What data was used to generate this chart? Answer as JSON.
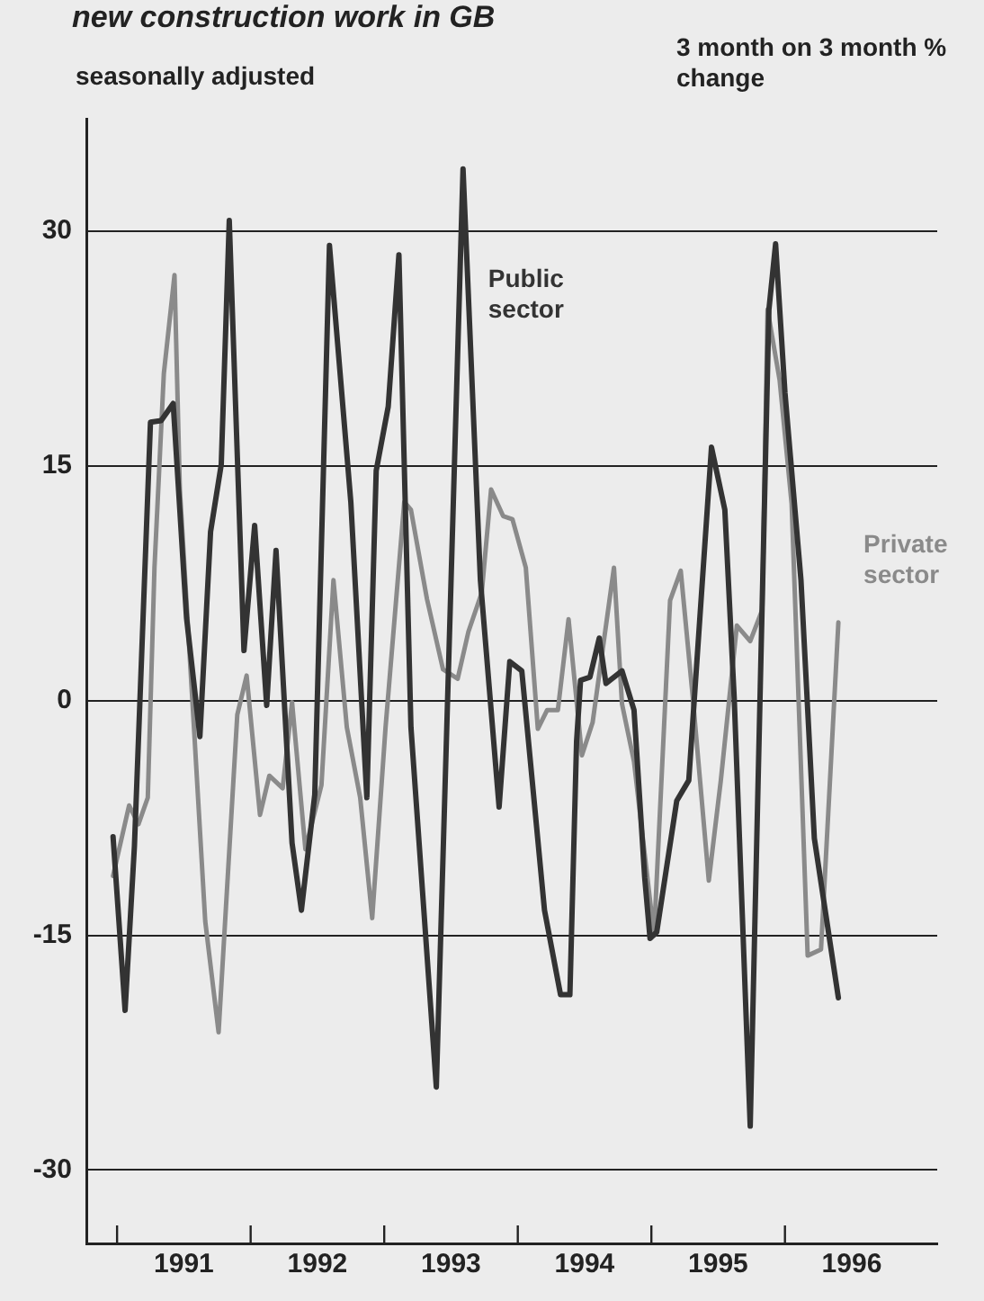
{
  "chart_data": {
    "type": "line",
    "title": "new construction work in GB",
    "subtitle": "seasonally adjusted",
    "ylabel": "3 month on 3 month % change",
    "series": [
      {
        "name": "Public sector",
        "color": "#333333",
        "x": [
          1990.97,
          1991.06,
          1991.13,
          1991.25,
          1991.33,
          1991.42,
          1991.52,
          1991.62,
          1991.7,
          1991.78,
          1991.84,
          1991.95,
          1992.03,
          1992.12,
          1992.19,
          1992.31,
          1992.38,
          1992.48,
          1992.59,
          1992.75,
          1992.87,
          1992.94,
          1993.03,
          1993.11,
          1993.2,
          1993.39,
          1993.59,
          1993.72,
          1993.86,
          1993.94,
          1994.03,
          1994.2,
          1994.32,
          1994.39,
          1994.44,
          1994.47,
          1994.54,
          1994.61,
          1994.66,
          1994.78,
          1994.87,
          1994.95,
          1994.99,
          1995.04,
          1995.19,
          1995.28,
          1995.45,
          1995.55,
          1995.62,
          1995.74,
          1995.88,
          1995.93,
          1996.0,
          1996.12,
          1996.22,
          1996.4
        ],
        "values": [
          -8.7,
          -19.8,
          -9.3,
          17.8,
          17.9,
          19.0,
          5.3,
          -2.3,
          10.8,
          15.1,
          30.7,
          3.2,
          11.2,
          -0.3,
          9.6,
          -9.1,
          -13.4,
          -6.0,
          29.1,
          12.7,
          -6.2,
          14.7,
          18.8,
          28.5,
          -1.7,
          -24.7,
          34.0,
          7.7,
          -6.8,
          2.5,
          1.9,
          -13.4,
          -18.8,
          -18.8,
          -2.6,
          1.3,
          1.5,
          4.0,
          1.1,
          1.9,
          -0.6,
          -11.3,
          -15.2,
          -14.8,
          -6.4,
          -5.1,
          16.2,
          12.2,
          0.2,
          -27.2,
          25.0,
          29.2,
          19.7,
          7.7,
          -8.8,
          -19.0
        ]
      },
      {
        "name": "Private sector",
        "color": "#8a8a8a",
        "x": [
          1990.97,
          1991.09,
          1991.16,
          1991.23,
          1991.28,
          1991.35,
          1991.43,
          1991.47,
          1991.57,
          1991.66,
          1991.76,
          1991.9,
          1991.97,
          1992.07,
          1992.14,
          1992.24,
          1992.31,
          1992.41,
          1992.53,
          1992.62,
          1992.72,
          1992.82,
          1992.91,
          1993.01,
          1993.15,
          1993.2,
          1993.32,
          1993.44,
          1993.55,
          1993.63,
          1993.73,
          1993.8,
          1993.89,
          1993.96,
          1994.06,
          1994.15,
          1994.22,
          1994.3,
          1994.38,
          1994.48,
          1994.56,
          1994.72,
          1994.78,
          1994.87,
          1995.02,
          1995.14,
          1995.22,
          1995.31,
          1995.43,
          1995.52,
          1995.64,
          1995.74,
          1995.83,
          1995.87,
          1995.96,
          1996.05,
          1996.17,
          1996.27,
          1996.4
        ],
        "values": [
          -11.2,
          -6.7,
          -7.9,
          -6.2,
          8.5,
          20.9,
          27.2,
          13.5,
          -0.9,
          -14.1,
          -21.2,
          -0.9,
          1.6,
          -7.3,
          -4.8,
          -5.6,
          -0.1,
          -9.5,
          -5.4,
          7.7,
          -1.7,
          -6.2,
          -13.9,
          -1.7,
          12.7,
          12.2,
          6.5,
          2.0,
          1.4,
          4.4,
          6.9,
          13.5,
          11.8,
          11.6,
          8.5,
          -1.8,
          -0.6,
          -0.6,
          5.2,
          -3.5,
          -1.4,
          8.5,
          -0.2,
          -3.9,
          -15.0,
          6.4,
          8.3,
          0.2,
          -11.5,
          -5.1,
          4.8,
          3.8,
          5.8,
          25.0,
          20.5,
          12.6,
          -16.3,
          -15.9,
          5.0
        ]
      }
    ],
    "xlim": [
      1990.77,
      1997.14
    ],
    "xticks": [
      {
        "value": 1991,
        "label": null
      },
      {
        "value": 1991.5,
        "label": "1991"
      },
      {
        "value": 1992,
        "label": null
      },
      {
        "value": 1992.5,
        "label": "1992"
      },
      {
        "value": 1993,
        "label": null
      },
      {
        "value": 1993.5,
        "label": "1993"
      },
      {
        "value": 1994,
        "label": null
      },
      {
        "value": 1994.5,
        "label": "1994"
      },
      {
        "value": 1995,
        "label": null
      },
      {
        "value": 1995.5,
        "label": "1995"
      },
      {
        "value": 1996,
        "label": null
      },
      {
        "value": 1996.5,
        "label": "1996"
      }
    ],
    "ylim": [
      -34.7,
      37.2
    ],
    "yticks": [
      -30,
      -15,
      0,
      15,
      30
    ],
    "grid": "y",
    "legend": false,
    "marker": "none",
    "line_style": "solid"
  }
}
